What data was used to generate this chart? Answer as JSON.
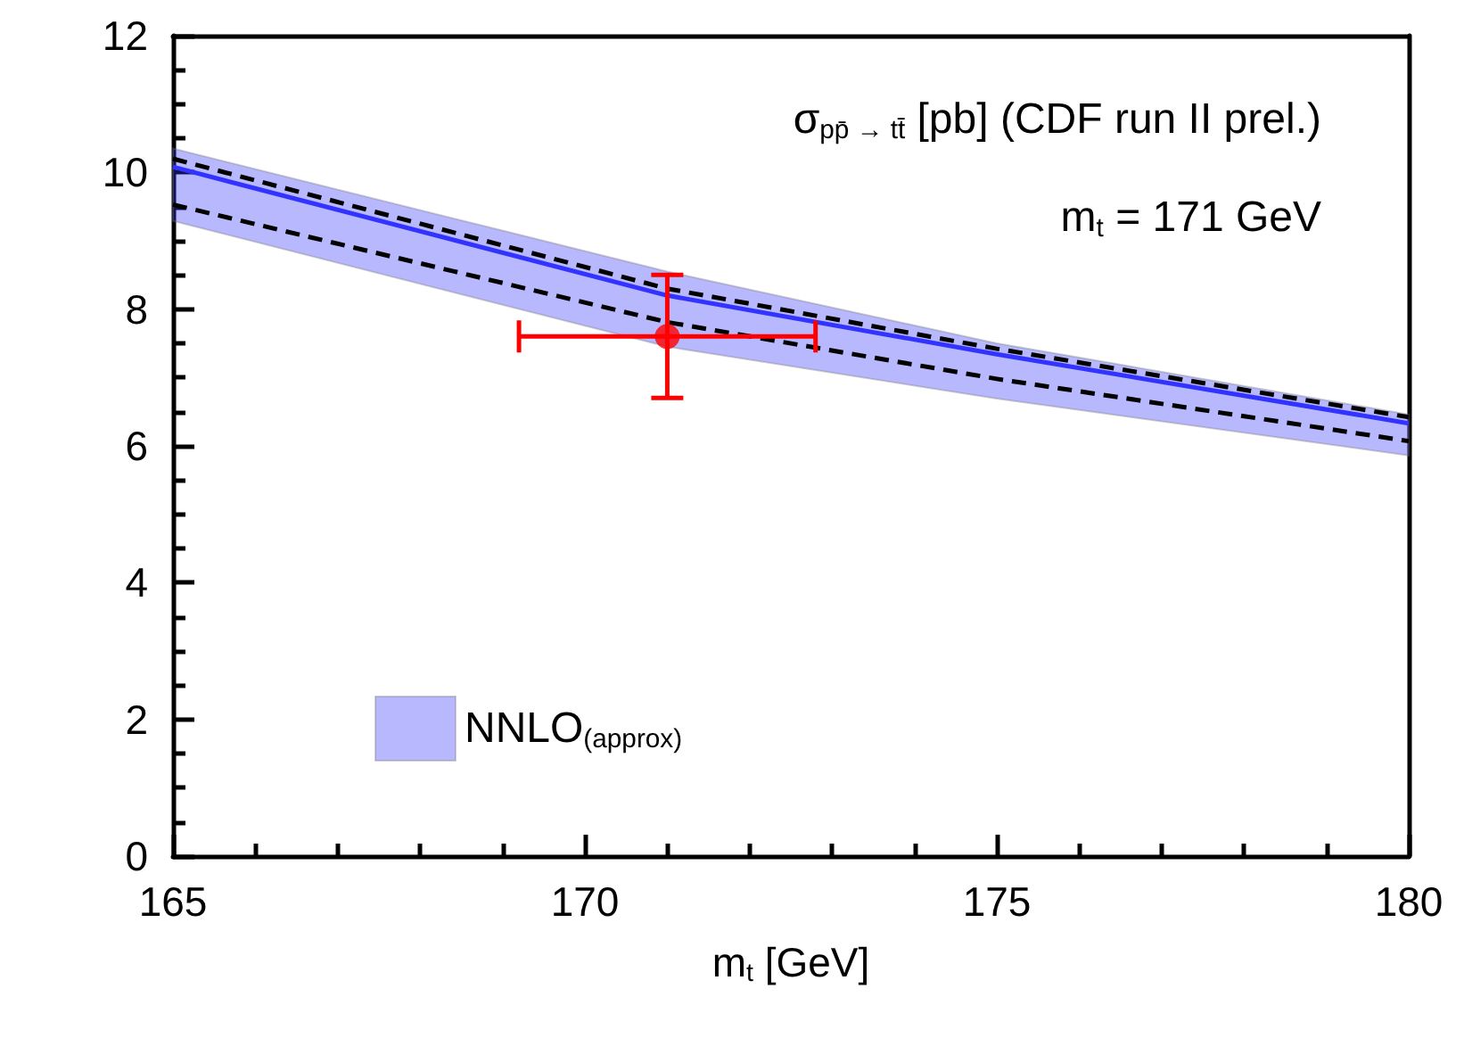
{
  "chart_data": {
    "type": "line",
    "xlabel": "m$_{t}$ [GeV]",
    "annotations": [
      "σ$_{pp̄ → tt̄}$ [pb] (CDF run II prel.)",
      "m$_{t}$ = 171 GeV"
    ],
    "x": [
      165,
      171,
      175,
      180
    ],
    "series": [
      {
        "name": "NNLO$_{(approx)}$",
        "color": "#3333ff",
        "values": [
          10.08,
          8.2,
          7.34,
          6.33
        ],
        "lower": [
          9.29,
          7.45,
          6.69,
          5.86
        ],
        "upper": [
          10.35,
          8.55,
          7.5,
          6.46
        ]
      },
      {
        "color": "#000000",
        "line_style": "dashed",
        "values": [
          10.2,
          8.3,
          7.42,
          6.42
        ]
      },
      {
        "color": "#000000",
        "line_style": "dashed",
        "values": [
          9.53,
          7.81,
          6.98,
          6.07
        ]
      },
      {
        "type": "scatter",
        "marker": "circle",
        "color": "#ff0000",
        "x": [
          171
        ],
        "values": [
          7.6
        ],
        "errors": [
          [
            6.7,
            8.5
          ]
        ],
        "xerrors": [
          [
            169.2,
            172.8
          ]
        ]
      }
    ],
    "xlim": [
      165,
      180
    ],
    "xticks": [
      165,
      {
        "value": 166,
        "label": null
      },
      {
        "value": 167,
        "label": null
      },
      {
        "value": 168,
        "label": null
      },
      {
        "value": 169,
        "label": null
      },
      170,
      {
        "value": 171,
        "label": null
      },
      {
        "value": 172,
        "label": null
      },
      {
        "value": 173,
        "label": null
      },
      {
        "value": 174,
        "label": null
      },
      175,
      {
        "value": 176,
        "label": null
      },
      {
        "value": 177,
        "label": null
      },
      {
        "value": 178,
        "label": null
      },
      {
        "value": 179,
        "label": null
      },
      180
    ],
    "ylim": [
      0,
      12
    ],
    "yticks": [
      0,
      {
        "value": 0.5,
        "label": null
      },
      {
        "value": 1,
        "label": null
      },
      {
        "value": 1.5,
        "label": null
      },
      2,
      {
        "value": 2.5,
        "label": null
      },
      {
        "value": 3,
        "label": null
      },
      {
        "value": 3.5,
        "label": null
      },
      4,
      {
        "value": 4.5,
        "label": null
      },
      {
        "value": 5,
        "label": null
      },
      {
        "value": 5.5,
        "label": null
      },
      6,
      {
        "value": 6.5,
        "label": null
      },
      {
        "value": 7,
        "label": null
      },
      {
        "value": 7.5,
        "label": null
      },
      8,
      {
        "value": 8.5,
        "label": null
      },
      {
        "value": 9,
        "label": null
      },
      {
        "value": 9.5,
        "label": null
      },
      10,
      {
        "value": 10.5,
        "label": null
      },
      {
        "value": 11,
        "label": null
      },
      {
        "value": 11.5,
        "label": null
      },
      12
    ],
    "grid": false,
    "legend": "bottom left",
    "marker": "none"
  }
}
